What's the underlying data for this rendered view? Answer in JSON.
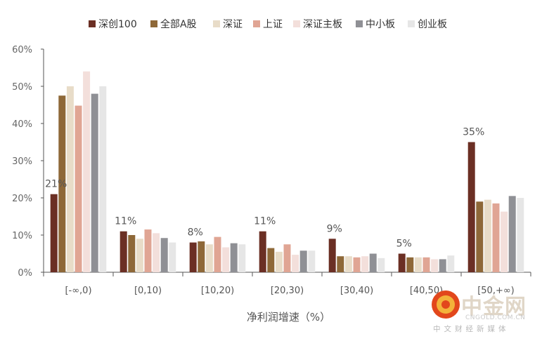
{
  "chart_data": {
    "type": "bar",
    "xlabel": "净利润增速（%）",
    "ylabel": "",
    "ylim": [
      0,
      0.6
    ],
    "yticks": [
      "0%",
      "10%",
      "20%",
      "30%",
      "40%",
      "50%",
      "60%"
    ],
    "legend_position": "top",
    "grid": false,
    "categories": [
      "[-∞,0)",
      "[0,10)",
      "[10,20)",
      "[20,30)",
      "[30,40)",
      "[40,50)",
      "[50,+∞)"
    ],
    "series": [
      {
        "name": "深创100",
        "color": "#6b2f24",
        "values": [
          0.21,
          0.11,
          0.08,
          0.11,
          0.09,
          0.05,
          0.35
        ]
      },
      {
        "name": "全部A股",
        "color": "#8e6838",
        "values": [
          0.475,
          0.1,
          0.083,
          0.065,
          0.043,
          0.04,
          0.19
        ]
      },
      {
        "name": "深证",
        "color": "#e8dcc8",
        "values": [
          0.5,
          0.09,
          0.075,
          0.055,
          0.043,
          0.04,
          0.195
        ]
      },
      {
        "name": "上证",
        "color": "#e0a594",
        "values": [
          0.448,
          0.115,
          0.095,
          0.075,
          0.04,
          0.04,
          0.185
        ]
      },
      {
        "name": "深证主板",
        "color": "#f3dfdb",
        "values": [
          0.54,
          0.105,
          0.067,
          0.047,
          0.043,
          0.035,
          0.163
        ]
      },
      {
        "name": "中小板",
        "color": "#8f9095",
        "values": [
          0.48,
          0.092,
          0.078,
          0.058,
          0.05,
          0.035,
          0.205
        ]
      },
      {
        "name": "创业板",
        "color": "#e6e6e6",
        "values": [
          0.5,
          0.08,
          0.075,
          0.058,
          0.038,
          0.045,
          0.2
        ]
      }
    ],
    "data_labels": [
      "21%",
      "11%",
      "8%",
      "11%",
      "9%",
      "5%",
      "35%"
    ]
  },
  "watermark": {
    "name": "中金网",
    "domain": "CNGOLD.COM.CN",
    "tagline": "中文财经新媒体"
  }
}
